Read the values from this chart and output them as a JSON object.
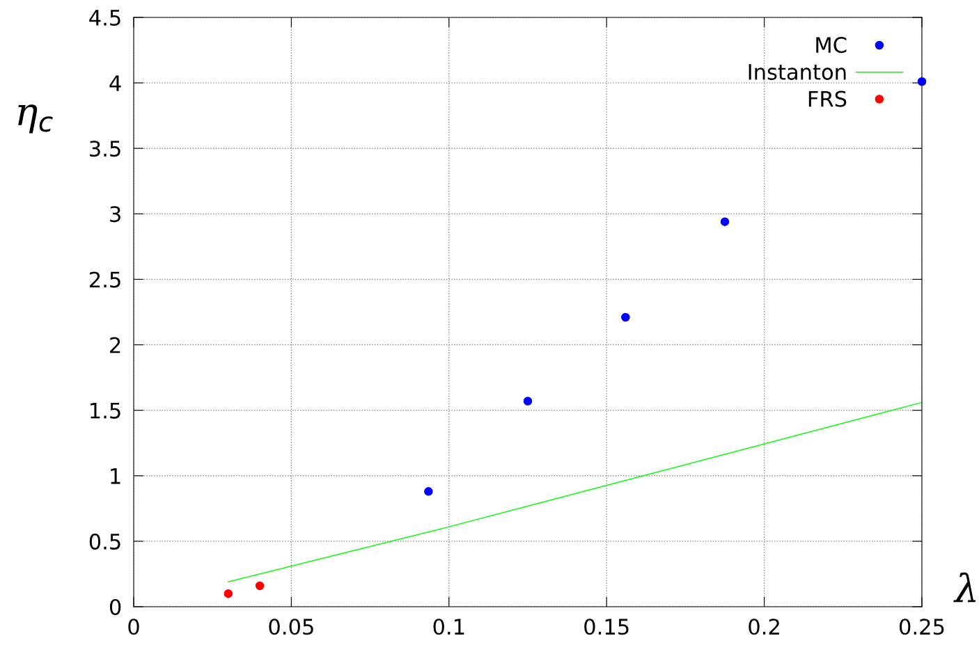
{
  "chart_data": {
    "type": "scatter",
    "xlabel": "λ",
    "ylabel": "η$_{c}$",
    "series": [
      {
        "name": "MC",
        "color": "#0000ff",
        "marker": "circle",
        "x": [
          0.0935,
          0.125,
          0.156,
          0.1875,
          0.25
        ],
        "values": [
          0.88,
          1.57,
          2.21,
          2.94,
          4.01
        ]
      },
      {
        "name": "Instanton",
        "type": "line",
        "color": "#00ff00",
        "line_style": "solid",
        "x": [
          0.03,
          0.1,
          0.25
        ],
        "values": [
          0.19,
          0.61,
          1.56
        ]
      },
      {
        "name": "FRS",
        "color": "#ff0000",
        "marker": "circle",
        "x": [
          0.03,
          0.04
        ],
        "values": [
          0.1,
          0.16
        ]
      }
    ],
    "xlim": [
      0,
      0.25
    ],
    "xticks": [
      0,
      0.05,
      0.1,
      0.15,
      0.2,
      0.25
    ],
    "ylim": [
      0,
      4.5
    ],
    "yticks": [
      0,
      0.5,
      1,
      1.5,
      2,
      2.5,
      3,
      3.5,
      4,
      4.5
    ],
    "grid": true,
    "legend": "top right"
  }
}
